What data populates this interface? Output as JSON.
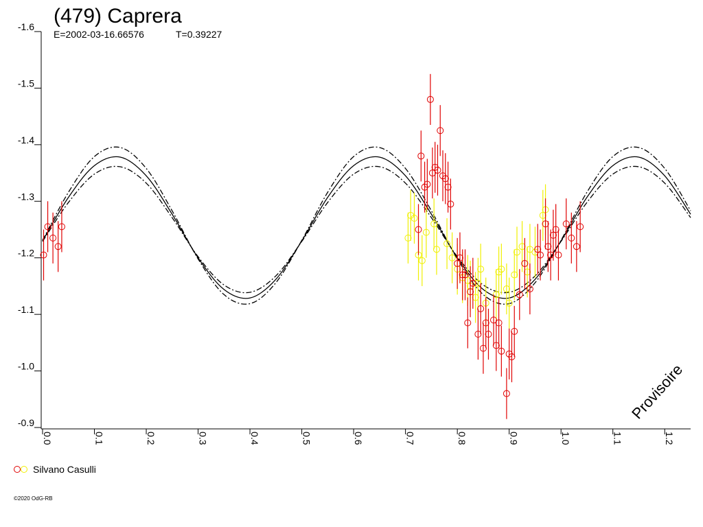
{
  "chart_data": {
    "type": "scatter",
    "title": "(479) Caprera",
    "subtitle": [
      "E=2002-03-16.66576",
      "T=0.39227"
    ],
    "watermark": "Provisoire",
    "footer": "©2020 OdG-RB",
    "xlim": [
      0,
      1.25
    ],
    "ylim": [
      -1.6,
      -0.9
    ],
    "xticks": [
      {
        "value": 0,
        "label": "0.0"
      },
      0.1,
      0.2,
      0.3,
      0.4,
      0.5,
      0.6,
      0.7,
      0.8,
      0.9,
      {
        "value": 1,
        "label": "1.0"
      },
      1.1,
      1.2
    ],
    "yticks": [
      -1.6,
      -1.5,
      -1.4,
      -1.3,
      -1.2,
      -1.1,
      {
        "value": -1,
        "label": "-1.0"
      },
      -0.9
    ],
    "fit": {
      "x": [
        0,
        0.05,
        0.1,
        0.15,
        0.2,
        0.25,
        0.3,
        0.35,
        0.4,
        0.45,
        0.5,
        0.55,
        0.6,
        0.65,
        0.7,
        0.75,
        0.8,
        0.85,
        0.9,
        0.95,
        1,
        1.05,
        1.1,
        1.15,
        1.2,
        1.25
      ],
      "series": [
        {
          "color": "#000000",
          "dash": "none",
          "values": [
            -1.23,
            -1.307,
            -1.363,
            -1.378,
            -1.345,
            -1.277,
            -1.2,
            -1.144,
            -1.129,
            -1.162,
            -1.23,
            -1.307,
            -1.363,
            -1.378,
            -1.345,
            -1.277,
            -1.2,
            -1.144,
            -1.129,
            -1.162,
            -1.23,
            -1.307,
            -1.363,
            -1.378,
            -1.345,
            -1.277
          ]
        },
        {
          "color": "#000000",
          "dash": "8 3 2 3",
          "values": [
            -1.231,
            -1.316,
            -1.379,
            -1.395,
            -1.358,
            -1.283,
            -1.198,
            -1.135,
            -1.119,
            -1.156,
            -1.231,
            -1.316,
            -1.379,
            -1.395,
            -1.358,
            -1.283,
            -1.198,
            -1.135,
            -1.119,
            -1.156,
            -1.231,
            -1.316,
            -1.379,
            -1.395,
            -1.358,
            -1.283
          ]
        },
        {
          "color": "#000000",
          "dash": "8 3 2 3",
          "values": [
            -1.229,
            -1.298,
            -1.348,
            -1.361,
            -1.332,
            -1.271,
            -1.202,
            -1.152,
            -1.139,
            -1.168,
            -1.229,
            -1.298,
            -1.348,
            -1.361,
            -1.332,
            -1.271,
            -1.202,
            -1.152,
            -1.139,
            -1.168,
            -1.229,
            -1.298,
            -1.348,
            -1.361,
            -1.332,
            -1.271
          ]
        }
      ]
    },
    "series": [
      {
        "name": "Silvano Casulli",
        "color": "#e00000",
        "x": [
          0.002,
          0.01,
          0.02,
          0.03,
          0.037,
          0.725,
          0.73,
          0.737,
          0.742,
          0.748,
          0.752,
          0.757,
          0.762,
          0.767,
          0.772,
          0.777,
          0.782,
          0.787,
          0.8,
          0.805,
          0.81,
          0.815,
          0.82,
          0.825,
          0.83,
          0.84,
          0.845,
          0.85,
          0.855,
          0.86,
          0.87,
          0.875,
          0.88,
          0.885,
          0.895,
          0.9,
          0.905,
          0.91,
          0.92,
          0.93,
          0.94,
          0.955,
          0.96,
          0.97,
          0.975,
          0.98,
          0.985,
          0.99,
          0.995,
          1.01,
          1.02,
          1.03,
          1.037
        ],
        "values": [
          -1.205,
          -1.255,
          -1.235,
          -1.22,
          -1.255,
          -1.25,
          -1.38,
          -1.325,
          -1.33,
          -1.48,
          -1.35,
          -1.36,
          -1.355,
          -1.425,
          -1.345,
          -1.34,
          -1.325,
          -1.295,
          -1.19,
          -1.2,
          -1.17,
          -1.17,
          -1.085,
          -1.14,
          -1.155,
          -1.065,
          -1.11,
          -1.04,
          -1.085,
          -1.065,
          -1.09,
          -1.045,
          -1.085,
          -1.035,
          -0.96,
          -1.03,
          -1.025,
          -1.07,
          -1.135,
          -1.19,
          -1.145,
          -1.215,
          -1.205,
          -1.26,
          -1.22,
          -1.205,
          -1.24,
          -1.25,
          -1.205,
          -1.26,
          -1.235,
          -1.22,
          -1.255
        ],
        "errors": [
          0.045,
          0.045,
          0.045,
          0.045,
          0.045,
          0.045,
          0.045,
          0.045,
          0.045,
          0.045,
          0.045,
          0.045,
          0.045,
          0.045,
          0.045,
          0.045,
          0.045,
          0.045,
          0.045,
          0.045,
          0.045,
          0.045,
          0.045,
          0.045,
          0.045,
          0.045,
          0.045,
          0.045,
          0.045,
          0.045,
          0.045,
          0.045,
          0.045,
          0.045,
          0.045,
          0.045,
          0.045,
          0.045,
          0.045,
          0.045,
          0.045,
          0.045,
          0.045,
          0.045,
          0.045,
          0.045,
          0.045,
          0.045,
          0.045,
          0.045,
          0.045,
          0.045,
          0.045
        ]
      },
      {
        "color": "#f0f000",
        "x": [
          0.705,
          0.71,
          0.717,
          0.725,
          0.732,
          0.74,
          0.755,
          0.76,
          0.78,
          0.79,
          0.8,
          0.81,
          0.82,
          0.825,
          0.835,
          0.84,
          0.845,
          0.855,
          0.875,
          0.88,
          0.885,
          0.895,
          0.9,
          0.91,
          0.915,
          0.925,
          0.935,
          0.94,
          0.95,
          0.965,
          0.97
        ],
        "values": [
          -1.235,
          -1.275,
          -1.27,
          -1.205,
          -1.195,
          -1.245,
          -1.26,
          -1.215,
          -1.225,
          -1.2,
          -1.18,
          -1.165,
          -1.16,
          -1.15,
          -1.13,
          -1.155,
          -1.18,
          -1.12,
          -1.135,
          -1.175,
          -1.18,
          -1.145,
          -1.12,
          -1.17,
          -1.21,
          -1.22,
          -1.175,
          -1.215,
          -1.21,
          -1.275,
          -1.285
        ],
        "errors": [
          0.045,
          0.045,
          0.045,
          0.045,
          0.045,
          0.045,
          0.045,
          0.045,
          0.045,
          0.045,
          0.045,
          0.045,
          0.045,
          0.045,
          0.045,
          0.045,
          0.045,
          0.045,
          0.045,
          0.045,
          0.045,
          0.045,
          0.045,
          0.045,
          0.045,
          0.045,
          0.045,
          0.045,
          0.045,
          0.045,
          0.045
        ]
      }
    ]
  }
}
